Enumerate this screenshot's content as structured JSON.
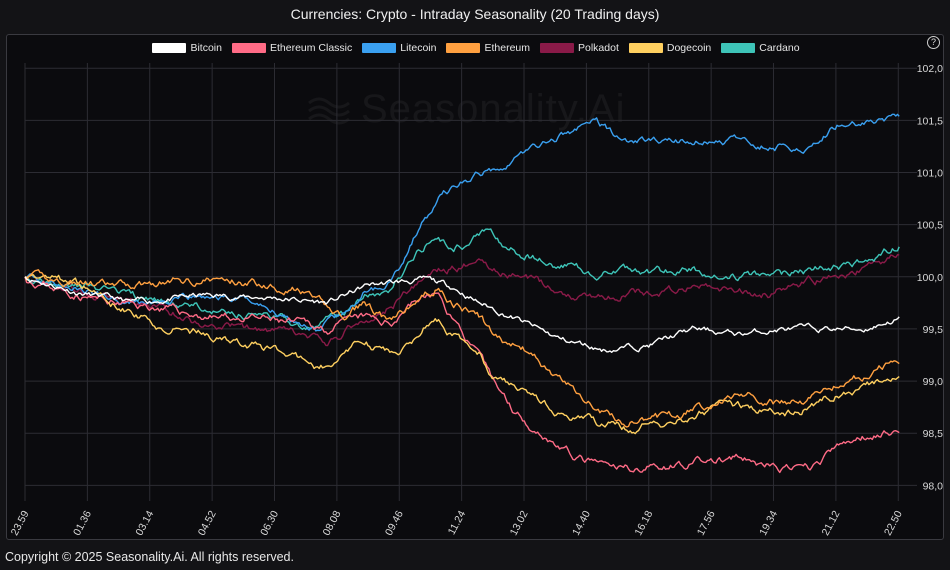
{
  "title": "Currencies: Crypto - Intraday Seasonality (20 Trading days)",
  "copyright": "Copyright © 2025 Seasonality.Ai. All rights reserved.",
  "watermark": "Seasonality.Ai",
  "help_label": "?",
  "icons": {
    "help": "question-circle-icon",
    "watermark_logo": "wave-logo-icon"
  },
  "chart_data": {
    "type": "line",
    "title": "Currencies: Crypto - Intraday Seasonality (20 Trading days)",
    "xlabel": "",
    "ylabel": "",
    "ylim": [
      97.85,
      102.05
    ],
    "yticks": [
      "102,0",
      "101,5",
      "101,0",
      "100,5",
      "100,0",
      "99,5",
      "99,0",
      "98,5",
      "98,0"
    ],
    "ytick_values": [
      102.0,
      101.5,
      101.0,
      100.5,
      100.0,
      99.5,
      99.0,
      98.5,
      98.0
    ],
    "xticks": [
      "23.59",
      "01.36",
      "03.14",
      "04.52",
      "06.30",
      "08.08",
      "09.46",
      "11.24",
      "13.02",
      "14.40",
      "16.18",
      "17.56",
      "19.34",
      "21.12",
      "22.50"
    ],
    "x_range": [
      0,
      1.0
    ],
    "grid": true,
    "legend_position": "top-center",
    "series": [
      {
        "name": "Bitcoin",
        "color": "#ffffff",
        "seed": 11,
        "anchors": [
          [
            0,
            100.0
          ],
          [
            0.06,
            99.85
          ],
          [
            0.12,
            99.75
          ],
          [
            0.2,
            99.82
          ],
          [
            0.28,
            99.8
          ],
          [
            0.34,
            99.75
          ],
          [
            0.385,
            99.92
          ],
          [
            0.42,
            99.95
          ],
          [
            0.45,
            99.97
          ],
          [
            0.48,
            99.9
          ],
          [
            0.51,
            99.75
          ],
          [
            0.55,
            99.6
          ],
          [
            0.6,
            99.4
          ],
          [
            0.65,
            99.3
          ],
          [
            0.7,
            99.35
          ],
          [
            0.75,
            99.5
          ],
          [
            0.8,
            99.45
          ],
          [
            0.85,
            99.5
          ],
          [
            0.9,
            99.5
          ],
          [
            0.94,
            99.5
          ],
          [
            0.98,
            99.6
          ]
        ],
        "noise": 0.025
      },
      {
        "name": "Ethereum Classic",
        "color": "#ff6b86",
        "seed": 23,
        "anchors": [
          [
            0,
            100.0
          ],
          [
            0.05,
            99.85
          ],
          [
            0.1,
            99.75
          ],
          [
            0.15,
            99.7
          ],
          [
            0.2,
            99.62
          ],
          [
            0.25,
            99.6
          ],
          [
            0.3,
            99.55
          ],
          [
            0.34,
            99.5
          ],
          [
            0.38,
            99.6
          ],
          [
            0.41,
            99.55
          ],
          [
            0.43,
            99.75
          ],
          [
            0.46,
            99.85
          ],
          [
            0.48,
            99.6
          ],
          [
            0.5,
            99.35
          ],
          [
            0.52,
            99.05
          ],
          [
            0.55,
            98.7
          ],
          [
            0.58,
            98.5
          ],
          [
            0.62,
            98.25
          ],
          [
            0.66,
            98.15
          ],
          [
            0.7,
            98.18
          ],
          [
            0.75,
            98.22
          ],
          [
            0.8,
            98.25
          ],
          [
            0.85,
            98.15
          ],
          [
            0.88,
            98.15
          ],
          [
            0.91,
            98.35
          ],
          [
            0.95,
            98.5
          ],
          [
            0.98,
            98.55
          ]
        ],
        "noise": 0.035
      },
      {
        "name": "Litecoin",
        "color": "#3aa0f0",
        "seed": 37,
        "anchors": [
          [
            0,
            100.0
          ],
          [
            0.05,
            99.9
          ],
          [
            0.1,
            99.8
          ],
          [
            0.15,
            99.75
          ],
          [
            0.2,
            99.8
          ],
          [
            0.25,
            99.78
          ],
          [
            0.3,
            99.6
          ],
          [
            0.33,
            99.5
          ],
          [
            0.36,
            99.65
          ],
          [
            0.38,
            99.85
          ],
          [
            0.4,
            99.9
          ],
          [
            0.42,
            100.1
          ],
          [
            0.44,
            100.45
          ],
          [
            0.47,
            100.8
          ],
          [
            0.5,
            100.95
          ],
          [
            0.53,
            101.05
          ],
          [
            0.56,
            101.2
          ],
          [
            0.6,
            101.35
          ],
          [
            0.64,
            101.5
          ],
          [
            0.67,
            101.3
          ],
          [
            0.72,
            101.3
          ],
          [
            0.76,
            101.3
          ],
          [
            0.8,
            101.3
          ],
          [
            0.84,
            101.25
          ],
          [
            0.88,
            101.25
          ],
          [
            0.91,
            101.45
          ],
          [
            0.95,
            101.5
          ],
          [
            0.98,
            101.5
          ]
        ],
        "noise": 0.03
      },
      {
        "name": "Ethereum",
        "color": "#ffa040",
        "seed": 41,
        "anchors": [
          [
            0,
            100.0
          ],
          [
            0.05,
            99.95
          ],
          [
            0.1,
            99.9
          ],
          [
            0.15,
            99.95
          ],
          [
            0.2,
            99.98
          ],
          [
            0.25,
            99.95
          ],
          [
            0.3,
            99.9
          ],
          [
            0.33,
            99.75
          ],
          [
            0.36,
            99.6
          ],
          [
            0.38,
            99.75
          ],
          [
            0.41,
            99.55
          ],
          [
            0.43,
            99.7
          ],
          [
            0.46,
            99.9
          ],
          [
            0.48,
            99.75
          ],
          [
            0.51,
            99.6
          ],
          [
            0.53,
            99.4
          ],
          [
            0.56,
            99.3
          ],
          [
            0.6,
            99.0
          ],
          [
            0.64,
            98.75
          ],
          [
            0.67,
            98.6
          ],
          [
            0.72,
            98.65
          ],
          [
            0.76,
            98.75
          ],
          [
            0.8,
            98.9
          ],
          [
            0.84,
            98.8
          ],
          [
            0.87,
            98.8
          ],
          [
            0.9,
            98.95
          ],
          [
            0.94,
            99.05
          ],
          [
            0.98,
            99.2
          ]
        ],
        "noise": 0.035
      },
      {
        "name": "Polkadot",
        "color": "#8a1a48",
        "seed": 53,
        "anchors": [
          [
            0,
            100.0
          ],
          [
            0.05,
            99.9
          ],
          [
            0.1,
            99.8
          ],
          [
            0.15,
            99.7
          ],
          [
            0.2,
            99.55
          ],
          [
            0.25,
            99.5
          ],
          [
            0.3,
            99.45
          ],
          [
            0.34,
            99.35
          ],
          [
            0.37,
            99.55
          ],
          [
            0.4,
            99.65
          ],
          [
            0.43,
            99.85
          ],
          [
            0.46,
            100.05
          ],
          [
            0.49,
            100.1
          ],
          [
            0.51,
            100.2
          ],
          [
            0.53,
            100.05
          ],
          [
            0.56,
            100.0
          ],
          [
            0.6,
            99.85
          ],
          [
            0.64,
            99.8
          ],
          [
            0.68,
            99.85
          ],
          [
            0.72,
            99.85
          ],
          [
            0.76,
            99.9
          ],
          [
            0.8,
            99.85
          ],
          [
            0.84,
            99.85
          ],
          [
            0.88,
            99.95
          ],
          [
            0.91,
            100.0
          ],
          [
            0.95,
            100.1
          ],
          [
            0.98,
            100.2
          ]
        ],
        "noise": 0.035
      },
      {
        "name": "Dogecoin",
        "color": "#ffd060",
        "seed": 67,
        "anchors": [
          [
            0,
            100.0
          ],
          [
            0.05,
            99.95
          ],
          [
            0.1,
            99.75
          ],
          [
            0.15,
            99.55
          ],
          [
            0.2,
            99.45
          ],
          [
            0.25,
            99.35
          ],
          [
            0.3,
            99.25
          ],
          [
            0.33,
            99.1
          ],
          [
            0.36,
            99.25
          ],
          [
            0.38,
            99.4
          ],
          [
            0.41,
            99.25
          ],
          [
            0.43,
            99.35
          ],
          [
            0.46,
            99.65
          ],
          [
            0.48,
            99.45
          ],
          [
            0.51,
            99.3
          ],
          [
            0.53,
            99.0
          ],
          [
            0.56,
            98.9
          ],
          [
            0.6,
            98.7
          ],
          [
            0.64,
            98.6
          ],
          [
            0.67,
            98.55
          ],
          [
            0.72,
            98.6
          ],
          [
            0.76,
            98.7
          ],
          [
            0.8,
            98.75
          ],
          [
            0.84,
            98.7
          ],
          [
            0.87,
            98.7
          ],
          [
            0.9,
            98.85
          ],
          [
            0.94,
            98.95
          ],
          [
            0.98,
            99.05
          ]
        ],
        "noise": 0.035
      },
      {
        "name": "Cardano",
        "color": "#3ec4b8",
        "seed": 79,
        "anchors": [
          [
            0,
            100.0
          ],
          [
            0.05,
            99.9
          ],
          [
            0.1,
            99.85
          ],
          [
            0.15,
            99.75
          ],
          [
            0.2,
            99.7
          ],
          [
            0.25,
            99.65
          ],
          [
            0.3,
            99.55
          ],
          [
            0.33,
            99.5
          ],
          [
            0.36,
            99.65
          ],
          [
            0.38,
            99.8
          ],
          [
            0.41,
            99.85
          ],
          [
            0.43,
            100.1
          ],
          [
            0.45,
            100.3
          ],
          [
            0.48,
            100.3
          ],
          [
            0.5,
            100.35
          ],
          [
            0.52,
            100.45
          ],
          [
            0.54,
            100.25
          ],
          [
            0.57,
            100.2
          ],
          [
            0.6,
            100.1
          ],
          [
            0.64,
            100.05
          ],
          [
            0.68,
            100.05
          ],
          [
            0.72,
            100.05
          ],
          [
            0.76,
            100.05
          ],
          [
            0.8,
            100.0
          ],
          [
            0.84,
            100.0
          ],
          [
            0.88,
            100.05
          ],
          [
            0.91,
            100.1
          ],
          [
            0.95,
            100.15
          ],
          [
            0.98,
            100.3
          ]
        ],
        "noise": 0.035
      }
    ]
  }
}
